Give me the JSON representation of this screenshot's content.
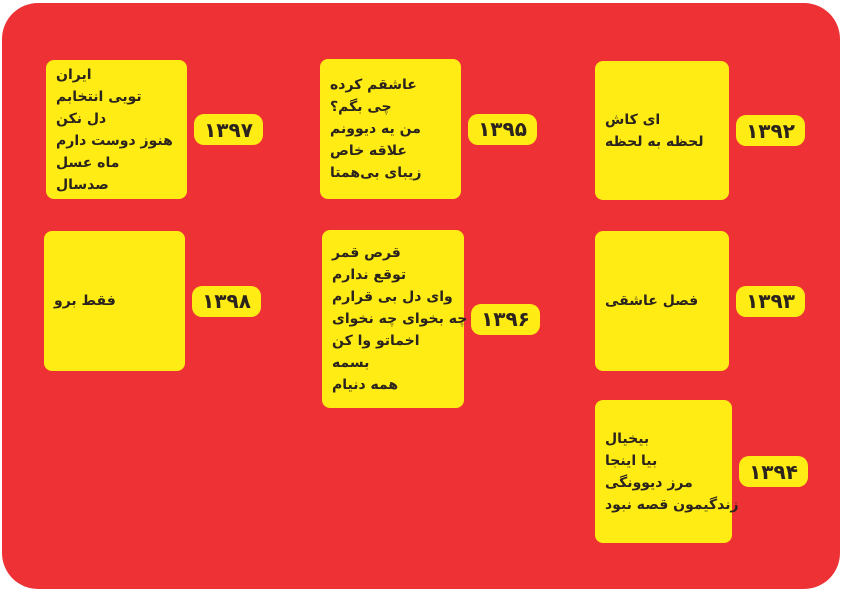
{
  "colors": {
    "background": "#ffffff",
    "board": "#EE3134",
    "card": "#FFEC14",
    "text": "#2A231E"
  },
  "cards": [
    {
      "year": "۱۳۹۲",
      "songs": [
        "ای کاش",
        "لحظه به لحظه"
      ]
    },
    {
      "year": "۱۳۹۳",
      "songs": [
        "فصل عاشقی"
      ]
    },
    {
      "year": "۱۳۹۴",
      "songs": [
        "بیخیال",
        "بیا اینجا",
        "مرز دیوونگی",
        "زندگیمون قصه نبود"
      ]
    },
    {
      "year": "۱۳۹۵",
      "songs": [
        "عاشقم کرده",
        "چی بگم؟",
        "من یه دیوونم",
        "علاقه خاص",
        "زیبای بی‌همتا"
      ]
    },
    {
      "year": "۱۳۹۶",
      "songs": [
        "قرص قمر",
        "توقع ندارم",
        "وای دل بی قرارم",
        "چه بخوای چه نخوای",
        "اخماتو وا کن",
        "بسمه",
        "همه دنیام"
      ]
    },
    {
      "year": "۱۳۹۷",
      "songs": [
        "ایران",
        "تویی انتخابم",
        "دل نکن",
        "هنوز دوست دارم",
        "ماه عسل",
        "صدسال"
      ]
    },
    {
      "year": "۱۳۹۸",
      "songs": [
        "فقط برو"
      ]
    }
  ]
}
